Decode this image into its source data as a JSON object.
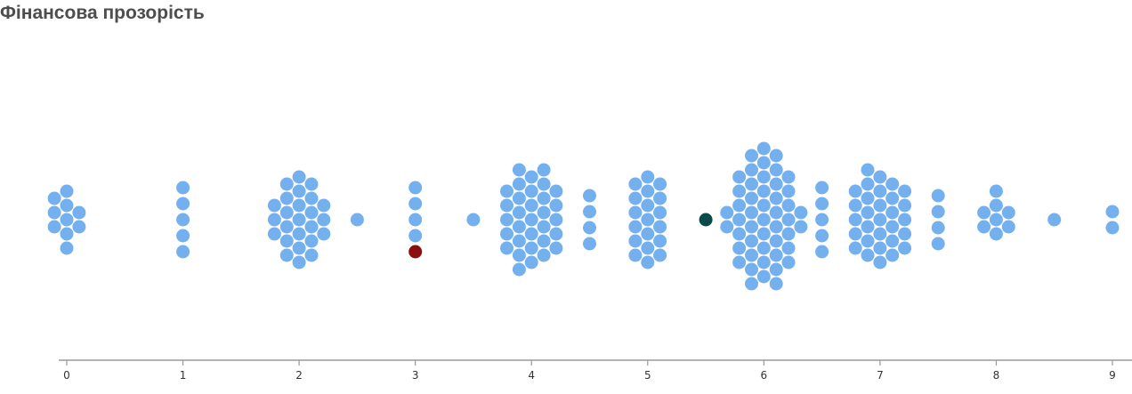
{
  "chart_data": {
    "type": "scatter",
    "subtype": "beeswarm",
    "title": "Фінансова прозорість",
    "xlabel": "",
    "ylabel": "",
    "xlim": [
      0,
      9
    ],
    "x_ticks": [
      "0",
      "1",
      "2",
      "3",
      "4",
      "5",
      "6",
      "7",
      "8",
      "9"
    ],
    "grid": false,
    "legend": "none",
    "colors": {
      "default": "#74b0ee",
      "highlight_red": "#8b0f0f",
      "highlight_dark": "#0b4a4a",
      "axis": "#9a9a9a"
    },
    "bins": [
      {
        "x": 0,
        "count": 10
      },
      {
        "x": 1,
        "count": 5
      },
      {
        "x": 2,
        "count": 25
      },
      {
        "x": 2.5,
        "count": 1
      },
      {
        "x": 3,
        "count": 5,
        "highlight": [
          {
            "index": 4,
            "color": "#8b0f0f"
          }
        ]
      },
      {
        "x": 3.5,
        "count": 1
      },
      {
        "x": 4,
        "count": 32
      },
      {
        "x": 4.5,
        "count": 4
      },
      {
        "x": 5,
        "count": 19
      },
      {
        "x": 5.5,
        "count": 1,
        "highlight": [
          {
            "index": 0,
            "color": "#0b4a4a"
          }
        ]
      },
      {
        "x": 6,
        "count": 48
      },
      {
        "x": 6.5,
        "count": 5
      },
      {
        "x": 7,
        "count": 30
      },
      {
        "x": 7.5,
        "count": 4
      },
      {
        "x": 8,
        "count": 8
      },
      {
        "x": 8.5,
        "count": 1
      },
      {
        "x": 9,
        "count": 2
      }
    ]
  }
}
